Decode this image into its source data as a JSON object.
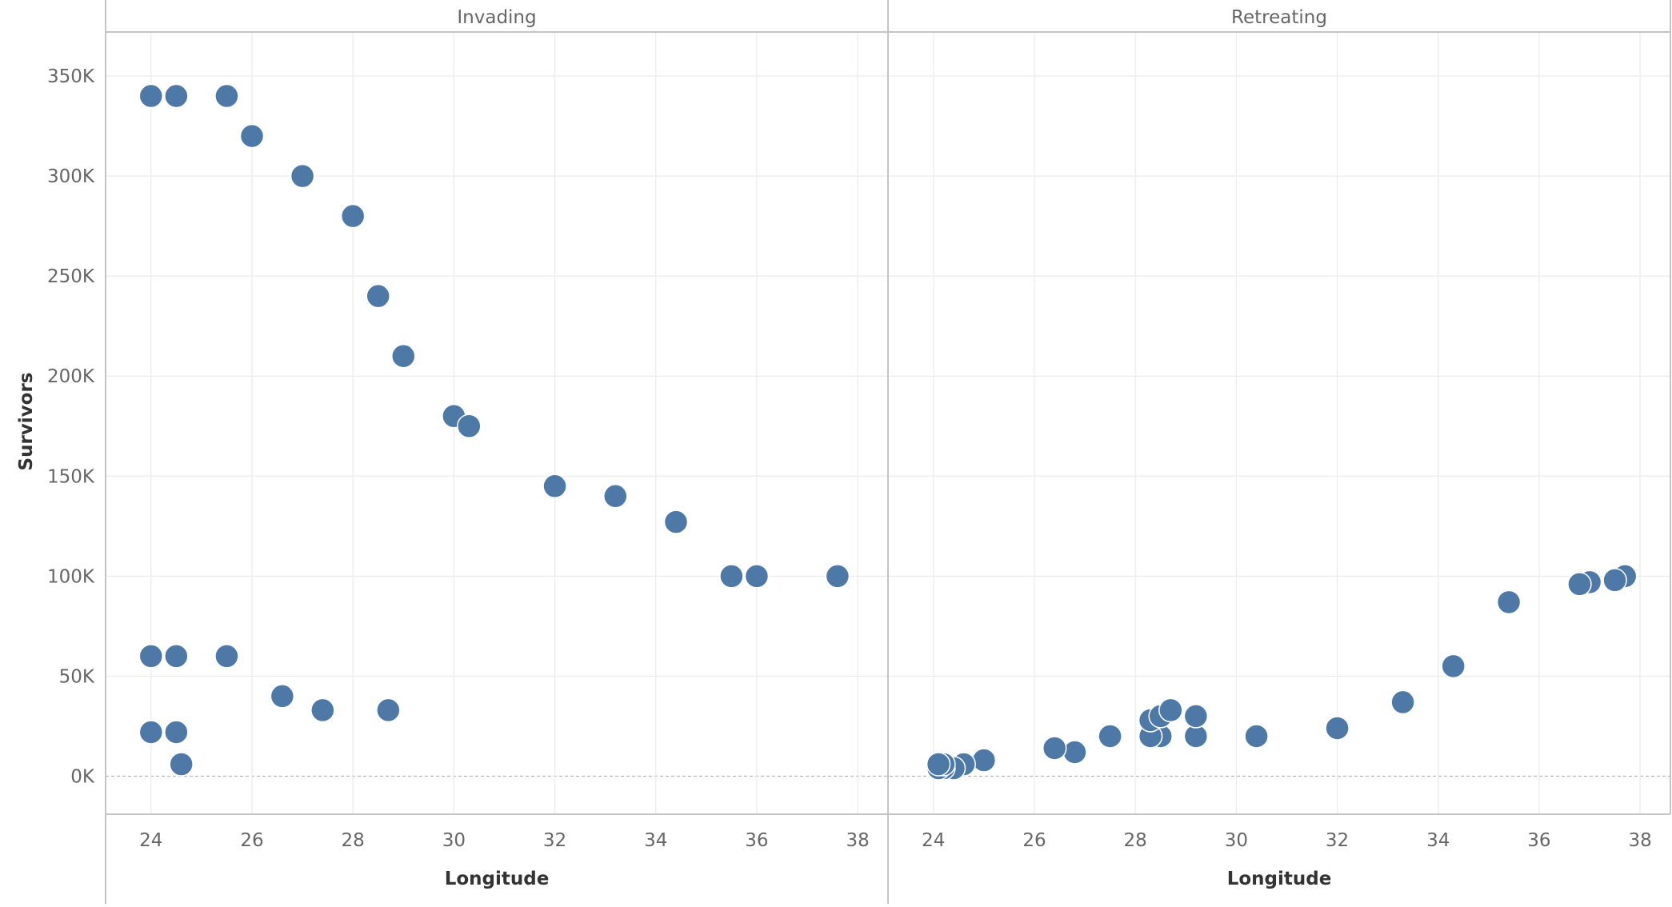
{
  "chart_data": {
    "type": "scatter",
    "facets": [
      {
        "label": "Invading",
        "points": [
          {
            "x": 24.0,
            "y": 340000
          },
          {
            "x": 24.5,
            "y": 340000
          },
          {
            "x": 25.5,
            "y": 340000
          },
          {
            "x": 26.0,
            "y": 320000
          },
          {
            "x": 27.0,
            "y": 300000
          },
          {
            "x": 28.0,
            "y": 280000
          },
          {
            "x": 28.5,
            "y": 240000
          },
          {
            "x": 29.0,
            "y": 210000
          },
          {
            "x": 30.0,
            "y": 180000
          },
          {
            "x": 30.3,
            "y": 175000
          },
          {
            "x": 32.0,
            "y": 145000
          },
          {
            "x": 33.2,
            "y": 140000
          },
          {
            "x": 34.4,
            "y": 127100
          },
          {
            "x": 35.5,
            "y": 100000
          },
          {
            "x": 36.0,
            "y": 100000
          },
          {
            "x": 37.6,
            "y": 100000
          },
          {
            "x": 24.0,
            "y": 60000
          },
          {
            "x": 24.5,
            "y": 60000
          },
          {
            "x": 25.5,
            "y": 60000
          },
          {
            "x": 26.6,
            "y": 40000
          },
          {
            "x": 27.4,
            "y": 33000
          },
          {
            "x": 28.7,
            "y": 33000
          },
          {
            "x": 24.0,
            "y": 22000
          },
          {
            "x": 24.5,
            "y": 22000
          },
          {
            "x": 24.6,
            "y": 6000
          }
        ]
      },
      {
        "label": "Retreating",
        "points": [
          {
            "x": 37.7,
            "y": 100000
          },
          {
            "x": 37.5,
            "y": 98000
          },
          {
            "x": 37.0,
            "y": 97000
          },
          {
            "x": 36.8,
            "y": 96000
          },
          {
            "x": 35.4,
            "y": 87000
          },
          {
            "x": 34.3,
            "y": 55000
          },
          {
            "x": 33.3,
            "y": 37000
          },
          {
            "x": 32.0,
            "y": 24000
          },
          {
            "x": 30.4,
            "y": 20000
          },
          {
            "x": 29.2,
            "y": 20000
          },
          {
            "x": 28.5,
            "y": 20000
          },
          {
            "x": 28.3,
            "y": 20000
          },
          {
            "x": 27.5,
            "y": 20000
          },
          {
            "x": 26.8,
            "y": 12000
          },
          {
            "x": 26.4,
            "y": 14000
          },
          {
            "x": 25.0,
            "y": 8000
          },
          {
            "x": 24.6,
            "y": 6000
          },
          {
            "x": 24.4,
            "y": 4000
          },
          {
            "x": 24.2,
            "y": 4000
          },
          {
            "x": 24.1,
            "y": 4000
          },
          {
            "x": 24.2,
            "y": 6000
          },
          {
            "x": 24.1,
            "y": 6000
          },
          {
            "x": 28.3,
            "y": 28000
          },
          {
            "x": 28.5,
            "y": 30000
          },
          {
            "x": 28.7,
            "y": 33000
          },
          {
            "x": 29.2,
            "y": 30000
          }
        ]
      }
    ],
    "xlabel": "Longitude",
    "ylabel": "Survivors",
    "xlim": [
      23.1,
      38.6
    ],
    "ylim": [
      -19000,
      372000
    ],
    "x_ticks": [
      24,
      26,
      28,
      30,
      32,
      34,
      36,
      38
    ],
    "y_ticks": [
      {
        "value": 0,
        "label": "0K"
      },
      {
        "value": 50000,
        "label": "50K"
      },
      {
        "value": 100000,
        "label": "100K"
      },
      {
        "value": 150000,
        "label": "150K"
      },
      {
        "value": 200000,
        "label": "200K"
      },
      {
        "value": 250000,
        "label": "250K"
      },
      {
        "value": 300000,
        "label": "300K"
      },
      {
        "value": 350000,
        "label": "350K"
      }
    ],
    "grid": true,
    "zero_line": true,
    "point_color": "#4e79a7"
  }
}
